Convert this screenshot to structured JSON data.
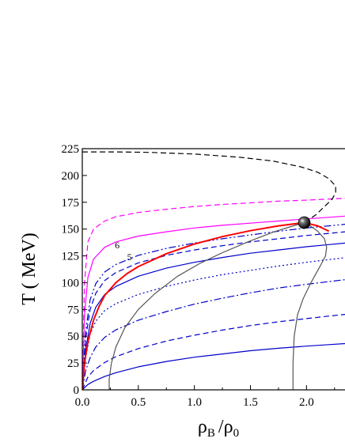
{
  "chart_data": {
    "type": "line",
    "xlabel_main": "ρ",
    "xlabel_sub1": "B",
    "xlabel_sep": "/ρ",
    "xlabel_sub2": "0",
    "ylabel": "T ( MeV)",
    "xlim": [
      0,
      2.4
    ],
    "ylim": [
      0,
      225
    ],
    "xticks": [
      0.0,
      0.5,
      1.0,
      1.5,
      2.0
    ],
    "xtick_labels": [
      "0.0",
      "0.5",
      "1.0",
      "1.5",
      "2.0"
    ],
    "yticks": [
      0,
      25,
      50,
      75,
      100,
      125,
      150,
      175,
      200,
      225
    ],
    "ytick_labels": [
      "0",
      "25",
      "50",
      "75",
      "100",
      "125",
      "150",
      "175",
      "200",
      "225"
    ],
    "annotations": [
      {
        "text": "6",
        "x": 0.29,
        "y": 132
      },
      {
        "text": "5",
        "x": 0.4,
        "y": 121
      }
    ],
    "critical_point": {
      "x": 1.98,
      "y": 156
    },
    "colors": {
      "blue": "#0000cc",
      "magenta": "#ff00ff",
      "red": "#ff0000",
      "gray": "#555555",
      "black": "#000000"
    },
    "series": [
      {
        "style": "blue-solid",
        "color": "#0000cc",
        "dash": "",
        "x": [
          0,
          0.05,
          0.1,
          0.2,
          0.3,
          0.5,
          0.75,
          1.0,
          1.25,
          1.5,
          1.75,
          2.0,
          2.2,
          2.4
        ],
        "y": [
          0,
          5,
          8,
          12.5,
          16,
          21.5,
          26.5,
          30.5,
          33.5,
          36.5,
          38.8,
          40.8,
          42.2,
          43.5
        ]
      },
      {
        "style": "blue-dashed",
        "color": "#0000cc",
        "dash": "7,4",
        "x": [
          0,
          0.05,
          0.1,
          0.2,
          0.3,
          0.5,
          0.75,
          1.0,
          1.25,
          1.5,
          1.75,
          2.0,
          2.2,
          2.4
        ],
        "y": [
          0,
          12,
          18,
          25.5,
          31,
          38.5,
          45.5,
          51,
          55.8,
          60,
          63.5,
          66.5,
          68.8,
          71
        ]
      },
      {
        "style": "blue-dashdot",
        "color": "#0000cc",
        "dash": "9,3,2,3",
        "x": [
          0,
          0.03,
          0.07,
          0.12,
          0.2,
          0.3,
          0.5,
          0.75,
          1.0,
          1.25,
          1.5,
          1.75,
          2.0,
          2.2,
          2.4
        ],
        "y": [
          0,
          18,
          30,
          40,
          49,
          56,
          65,
          73,
          80,
          85.5,
          90.5,
          95,
          98.5,
          101,
          103.5
        ]
      },
      {
        "style": "blue-dotted",
        "color": "#0000cc",
        "dash": "2,3",
        "x": [
          0,
          0.03,
          0.07,
          0.12,
          0.2,
          0.3,
          0.5,
          0.75,
          1.0,
          1.25,
          1.5,
          1.75,
          2.0,
          2.2,
          2.4
        ],
        "y": [
          0,
          30,
          52,
          64,
          74,
          80.5,
          89,
          96.5,
          102.5,
          107.5,
          111.5,
          115.5,
          119,
          121.5,
          124
        ]
      },
      {
        "style": "blue-solid-2",
        "color": "#0000cc",
        "dash": "",
        "x": [
          0,
          0.03,
          0.07,
          0.12,
          0.2,
          0.3,
          0.5,
          0.75,
          1.0,
          1.25,
          1.5,
          1.75,
          2.0,
          2.2,
          2.4
        ],
        "y": [
          0,
          38,
          62,
          77,
          89,
          96.5,
          106,
          113.5,
          119,
          123.5,
          127.5,
          130.5,
          133.5,
          135.5,
          137.5
        ]
      },
      {
        "style": "blue-dashed-2",
        "color": "#0000cc",
        "dash": "7,4",
        "x": [
          0,
          0.03,
          0.07,
          0.12,
          0.2,
          0.3,
          0.5,
          0.75,
          1.0,
          1.25,
          1.5,
          1.75,
          2.0,
          2.2,
          2.4
        ],
        "y": [
          0,
          48,
          75,
          90,
          102,
          109.5,
          118.5,
          125.5,
          130.5,
          134.5,
          138,
          141,
          144,
          146,
          148
        ]
      },
      {
        "style": "blue-dashdotdot",
        "color": "#0000cc",
        "dash": "9,3,2,3,2,3",
        "x": [
          0,
          0.03,
          0.07,
          0.12,
          0.2,
          0.3,
          0.5,
          0.75,
          1.0,
          1.25,
          1.5,
          1.75,
          2.0,
          2.2,
          2.4
        ],
        "y": [
          0,
          55,
          84,
          99,
          110,
          117,
          125.5,
          132,
          137,
          141,
          144.5,
          148,
          151,
          153,
          155
        ]
      },
      {
        "style": "magenta-solid",
        "color": "#ff00ff",
        "dash": "",
        "x": [
          0,
          0.02,
          0.05,
          0.1,
          0.2,
          0.3,
          0.5,
          0.75,
          1.0,
          1.25,
          1.5,
          1.75,
          2.0,
          2.2,
          2.4
        ],
        "y": [
          0,
          70,
          105,
          122,
          133,
          138,
          143.5,
          147.5,
          151,
          153.5,
          155.5,
          157.5,
          159.5,
          161,
          162.5
        ]
      },
      {
        "style": "magenta-dashed",
        "color": "#ff00ff",
        "dash": "7,4",
        "x": [
          0,
          0.02,
          0.05,
          0.1,
          0.2,
          0.3,
          0.5,
          0.75,
          1.0,
          1.25,
          1.5,
          1.75,
          2.0,
          2.2,
          2.4
        ],
        "y": [
          0,
          100,
          138,
          150,
          157.5,
          161.5,
          165.5,
          168.5,
          171,
          173,
          174.5,
          176,
          177,
          178,
          179
        ]
      },
      {
        "style": "red-solid",
        "color": "#ff0000",
        "dash": "",
        "x": [
          0,
          0.02,
          0.05,
          0.1,
          0.15,
          0.2,
          0.3,
          0.4,
          0.5,
          0.75,
          1.0,
          1.25,
          1.5,
          1.75,
          1.98,
          2.1,
          2.2
        ],
        "y": [
          0,
          25,
          45,
          65,
          78,
          88,
          100,
          108.5,
          115,
          127,
          136,
          143,
          148.5,
          153,
          156,
          153,
          148
        ]
      },
      {
        "style": "black-dashed",
        "color": "#000000",
        "dash": "7,4",
        "x": [
          0.0,
          0.3,
          0.6,
          1.0,
          1.4,
          1.7,
          1.95,
          2.1,
          2.2,
          2.26,
          2.26,
          2.23,
          2.15,
          2.08,
          1.98
        ],
        "y": [
          222,
          222,
          221.5,
          220,
          217,
          213.5,
          208,
          203,
          197,
          190,
          184,
          178,
          170,
          163,
          156
        ]
      },
      {
        "style": "gray-solid-left",
        "color": "#555555",
        "dash": "",
        "x": [
          0.24,
          0.24,
          0.26,
          0.3,
          0.38,
          0.5,
          0.65,
          0.85,
          1.05,
          1.25,
          1.5,
          1.7,
          1.85,
          1.98
        ],
        "y": [
          0,
          10,
          25,
          40,
          58,
          75,
          90,
          106,
          118,
          128,
          139,
          147,
          152,
          156
        ]
      },
      {
        "style": "gray-solid-right",
        "color": "#555555",
        "dash": "",
        "x": [
          1.88,
          1.88,
          1.89,
          1.92,
          1.97,
          2.04,
          2.12,
          2.17,
          2.18,
          2.16,
          2.1,
          2.04,
          1.98
        ],
        "y": [
          0,
          25,
          50,
          70,
          85,
          100,
          115,
          125,
          133,
          141,
          148,
          152.5,
          156
        ]
      }
    ]
  }
}
